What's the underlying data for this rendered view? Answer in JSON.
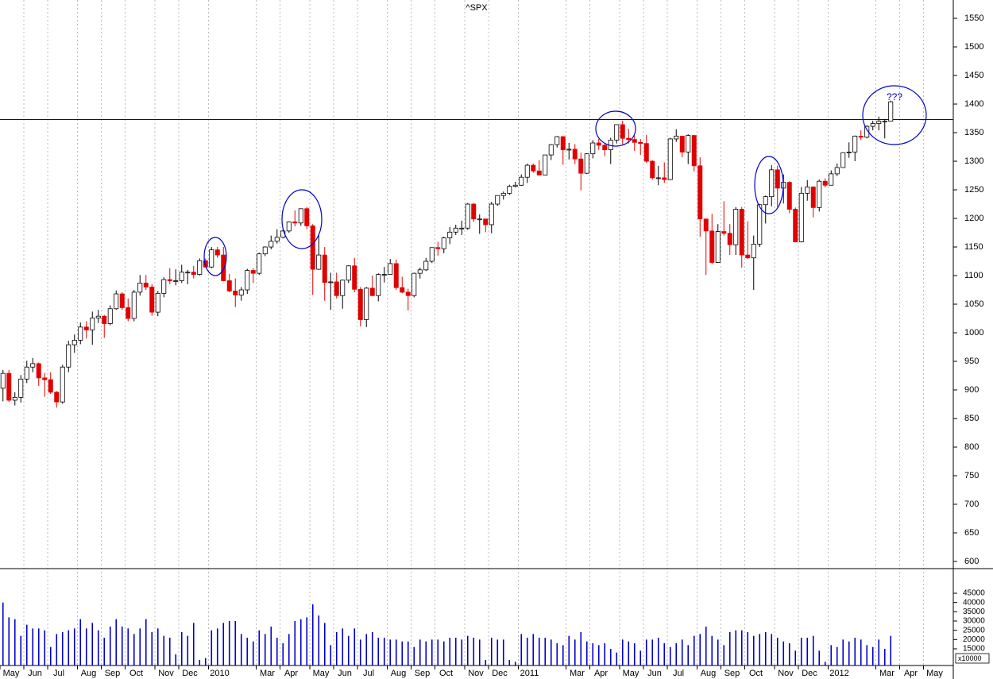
{
  "chart_data": {
    "type": "candlestick",
    "title": "^SPX",
    "annotation": "???",
    "reference_line": 1373,
    "up_color": "#ffffff",
    "down_color": "#e00000",
    "volume_color": "#0000cc",
    "line_color": "#0000cc",
    "ylim": [
      587.5,
      1582
    ],
    "yticks": [
      600,
      650,
      700,
      750,
      800,
      850,
      900,
      950,
      1000,
      1050,
      1100,
      1150,
      1200,
      1250,
      1300,
      1350,
      1400,
      1450,
      1500,
      1550
    ],
    "volume_ylim": [
      6000,
      58300
    ],
    "volume_yticks": [
      15000,
      20000,
      25000,
      30000,
      35000,
      40000,
      45000
    ],
    "volume_unit_label": "x10000",
    "categories": [
      "May",
      null,
      null,
      null,
      "Jun",
      null,
      null,
      null,
      "Jul",
      null,
      null,
      null,
      null,
      "Aug",
      null,
      null,
      null,
      "Sep",
      null,
      null,
      null,
      "Oct",
      null,
      null,
      null,
      null,
      "Nov",
      null,
      null,
      null,
      "Dec",
      null,
      null,
      null,
      null,
      "2010",
      null,
      null,
      null,
      null,
      null,
      null,
      null,
      "Mar",
      null,
      null,
      null,
      "Apr",
      null,
      null,
      null,
      null,
      "May",
      null,
      null,
      null,
      "Jun",
      null,
      null,
      null,
      "Jul",
      null,
      null,
      null,
      null,
      "Aug",
      null,
      null,
      null,
      "Sep",
      null,
      null,
      null,
      "Oct",
      null,
      null,
      null,
      null,
      "Nov",
      null,
      null,
      null,
      "Dec",
      null,
      null,
      null,
      null,
      "2011",
      null,
      null,
      null,
      null,
      null,
      null,
      null,
      "Mar",
      null,
      null,
      null,
      "Apr",
      null,
      null,
      null,
      null,
      "May",
      null,
      null,
      null,
      "Jun",
      null,
      null,
      null,
      "Jul",
      null,
      null,
      null,
      null,
      "Aug",
      null,
      null,
      null,
      "Sep",
      null,
      null,
      null,
      "Oct",
      null,
      null,
      null,
      null,
      "Nov",
      null,
      null,
      null,
      "Dec",
      null,
      null,
      null,
      null,
      "2012",
      null,
      null,
      null,
      null,
      null,
      null,
      null,
      "Mar",
      null,
      null,
      null,
      "Apr",
      null,
      null,
      null,
      "May",
      null,
      null,
      null,
      null
    ],
    "open": [
      903,
      929,
      882,
      887,
      919,
      940,
      946,
      921,
      918,
      896,
      879,
      940,
      979,
      987,
      1010,
      1005,
      1026,
      1029,
      1016,
      1042,
      1068,
      1044,
      1025,
      1071,
      1087,
      1080,
      1036,
      1069,
      1093,
      1091,
      1091,
      1106,
      1106,
      1102,
      1126,
      1115,
      1145,
      1136,
      1091,
      1073,
      1066,
      1075,
      1109,
      1104,
      1138,
      1150,
      1160,
      1167,
      1178,
      1194,
      1192,
      1217,
      1187,
      1111,
      1136,
      1088,
      1089,
      1065,
      1092,
      1117,
      1076,
      1023,
      1078,
      1065,
      1102,
      1102,
      1121,
      1079,
      1071,
      1065,
      1104,
      1110,
      1125,
      1149,
      1147,
      1166,
      1176,
      1183,
      1183,
      1225,
      1199,
      1199,
      1189,
      1225,
      1240,
      1244,
      1256,
      1258,
      1272,
      1293,
      1283,
      1276,
      1311,
      1329,
      1343,
      1320,
      1321,
      1304,
      1279,
      1313,
      1332,
      1328,
      1320,
      1337,
      1364,
      1340,
      1338,
      1333,
      1331,
      1300,
      1271,
      1271,
      1268,
      1339,
      1344,
      1316,
      1345,
      1292,
      1199,
      1178,
      1123,
      1177,
      1174,
      1154,
      1216,
      1136,
      1131,
      1155,
      1224,
      1238,
      1285,
      1253,
      1263,
      1216,
      1159,
      1244,
      1255,
      1219,
      1265,
      1258,
      1278,
      1289,
      1315,
      1316,
      1344,
      1342,
      1361,
      1366,
      1370,
      1370,
      null,
      null,
      null,
      null,
      null,
      null,
      null,
      null,
      null,
      null
    ],
    "high": [
      935,
      935,
      896,
      926,
      951,
      956,
      948,
      930,
      931,
      898,
      944,
      986,
      997,
      1018,
      1020,
      1037,
      1040,
      1031,
      1048,
      1074,
      1071,
      1060,
      1075,
      1101,
      1101,
      1085,
      1073,
      1097,
      1113,
      1111,
      1119,
      1110,
      1117,
      1130,
      1130,
      1150,
      1150,
      1150,
      1103,
      1095,
      1080,
      1112,
      1113,
      1140,
      1151,
      1170,
      1181,
      1181,
      1195,
      1214,
      1217,
      1220,
      1190,
      1173,
      1150,
      1105,
      1105,
      1093,
      1118,
      1131,
      1080,
      1080,
      1100,
      1104,
      1115,
      1129,
      1128,
      1098,
      1077,
      1105,
      1114,
      1131,
      1149,
      1159,
      1168,
      1185,
      1189,
      1196,
      1227,
      1227,
      1207,
      1198,
      1229,
      1240,
      1247,
      1259,
      1264,
      1277,
      1296,
      1296,
      1302,
      1311,
      1330,
      1344,
      1344,
      1332,
      1330,
      1315,
      1314,
      1337,
      1339,
      1332,
      1341,
      1364,
      1371,
      1357,
      1345,
      1339,
      1346,
      1302,
      1292,
      1298,
      1341,
      1356,
      1344,
      1347,
      1346,
      1307,
      1199,
      1208,
      1190,
      1230,
      1190,
      1220,
      1220,
      1195,
      1170,
      1225,
      1240,
      1293,
      1292,
      1277,
      1265,
      1219,
      1255,
      1267,
      1256,
      1268,
      1270,
      1284,
      1296,
      1315,
      1333,
      1345,
      1354,
      1363,
      1371,
      1378,
      1374,
      1406,
      null,
      null,
      null,
      null,
      null,
      null,
      null,
      null,
      null,
      null
    ],
    "low": [
      880,
      879,
      873,
      878,
      912,
      931,
      907,
      888,
      893,
      869,
      876,
      931,
      965,
      980,
      990,
      979,
      1017,
      991,
      1013,
      1040,
      1040,
      1020,
      1020,
      1065,
      1075,
      1030,
      1029,
      1062,
      1085,
      1083,
      1087,
      1085,
      1095,
      1100,
      1114,
      1113,
      1131,
      1090,
      1071,
      1045,
      1056,
      1068,
      1087,
      1101,
      1134,
      1146,
      1156,
      1165,
      1175,
      1186,
      1187,
      1181,
      1066,
      1110,
      1056,
      1040,
      1060,
      1042,
      1087,
      1071,
      1011,
      1010,
      1064,
      1055,
      1088,
      1105,
      1075,
      1069,
      1039,
      1062,
      1095,
      1108,
      1122,
      1135,
      1139,
      1155,
      1171,
      1171,
      1180,
      1194,
      1173,
      1176,
      1174,
      1222,
      1233,
      1241,
      1254,
      1257,
      1262,
      1280,
      1275,
      1276,
      1302,
      1324,
      1294,
      1303,
      1295,
      1249,
      1278,
      1305,
      1320,
      1309,
      1295,
      1331,
      1329,
      1331,
      1318,
      1311,
      1297,
      1268,
      1258,
      1262,
      1267,
      1334,
      1307,
      1295,
      1282,
      1168,
      1101,
      1120,
      1122,
      1170,
      1136,
      1136,
      1114,
      1129,
      1075,
      1150,
      1191,
      1221,
      1220,
      1226,
      1209,
      1158,
      1158,
      1231,
      1202,
      1212,
      1254,
      1258,
      1274,
      1290,
      1306,
      1300,
      1337,
      1340,
      1354,
      1354,
      1340,
      1370,
      null,
      null,
      null,
      null,
      null,
      null,
      null,
      null,
      null,
      null
    ],
    "close": [
      929,
      882,
      887,
      919,
      940,
      946,
      921,
      918,
      896,
      879,
      940,
      979,
      987,
      1010,
      1005,
      1026,
      1029,
      1016,
      1042,
      1068,
      1044,
      1025,
      1071,
      1087,
      1080,
      1036,
      1069,
      1093,
      1091,
      1091,
      1106,
      1106,
      1102,
      1126,
      1115,
      1145,
      1136,
      1091,
      1073,
      1066,
      1075,
      1109,
      1104,
      1138,
      1150,
      1160,
      1167,
      1178,
      1194,
      1192,
      1217,
      1187,
      1111,
      1136,
      1088,
      1089,
      1065,
      1092,
      1117,
      1076,
      1023,
      1078,
      1065,
      1102,
      1102,
      1121,
      1079,
      1071,
      1065,
      1104,
      1110,
      1125,
      1149,
      1147,
      1166,
      1176,
      1183,
      1183,
      1225,
      1199,
      1199,
      1189,
      1225,
      1240,
      1244,
      1256,
      1258,
      1272,
      1293,
      1283,
      1276,
      1311,
      1329,
      1343,
      1320,
      1321,
      1304,
      1279,
      1313,
      1332,
      1328,
      1320,
      1337,
      1364,
      1340,
      1338,
      1333,
      1331,
      1300,
      1271,
      1271,
      1268,
      1339,
      1344,
      1316,
      1345,
      1292,
      1199,
      1178,
      1123,
      1177,
      1174,
      1154,
      1216,
      1136,
      1131,
      1155,
      1224,
      1238,
      1285,
      1253,
      1263,
      1216,
      1159,
      1244,
      1255,
      1219,
      1265,
      1258,
      1278,
      1289,
      1315,
      1316,
      1344,
      1342,
      1361,
      1366,
      1370,
      1370,
      1404,
      null,
      null,
      null,
      null,
      null,
      null,
      null,
      null,
      null,
      null
    ],
    "volume": [
      40000,
      32000,
      31000,
      22000,
      28000,
      26000,
      26000,
      25000,
      16000,
      23000,
      24000,
      25000,
      26000,
      31000,
      26000,
      29000,
      25000,
      21000,
      27000,
      31000,
      27000,
      26000,
      23000,
      26000,
      31000,
      24000,
      26000,
      22000,
      21000,
      12000,
      24000,
      22000,
      29000,
      9000,
      10000,
      25000,
      26000,
      29000,
      30000,
      30000,
      23000,
      21000,
      19000,
      25000,
      23000,
      27000,
      21000,
      18000,
      23000,
      30000,
      31000,
      32000,
      39000,
      33000,
      29000,
      17000,
      24000,
      26000,
      22000,
      26000,
      20000,
      23000,
      24000,
      21000,
      21000,
      20000,
      20000,
      19000,
      19000,
      16000,
      20000,
      19000,
      20000,
      20000,
      19000,
      21000,
      21000,
      20000,
      22000,
      21000,
      20000,
      9000,
      21000,
      20000,
      20000,
      9000,
      8000,
      23000,
      21000,
      23000,
      21000,
      21000,
      20000,
      18000,
      17000,
      22000,
      20000,
      24000,
      19000,
      18000,
      17000,
      18000,
      15000,
      13000,
      20000,
      19000,
      18000,
      14000,
      20000,
      20000,
      21000,
      18000,
      16000,
      18000,
      20000,
      17000,
      22000,
      23000,
      27000,
      22000,
      20000,
      17000,
      24000,
      25000,
      25000,
      24000,
      22000,
      23000,
      24000,
      23000,
      21000,
      19000,
      18000,
      14000,
      21000,
      21000,
      22000,
      14000,
      8000,
      17000,
      16000,
      20000,
      19000,
      21000,
      20000,
      17000,
      16000,
      20000,
      15000,
      22000,
      null,
      null,
      null,
      null,
      null,
      null,
      null,
      null,
      null,
      null
    ]
  }
}
